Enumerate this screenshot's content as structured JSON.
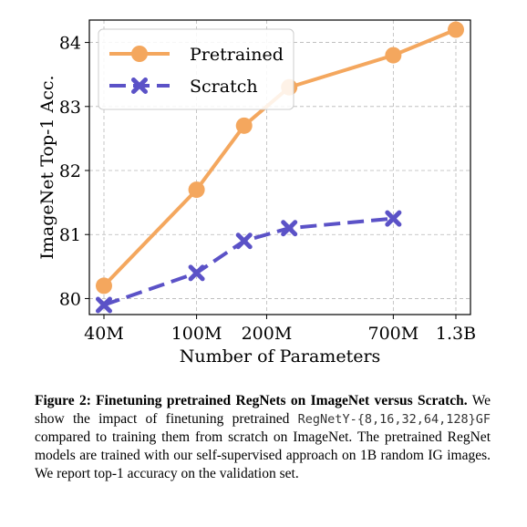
{
  "chart_data": {
    "type": "line",
    "xlabel": "Number of Parameters",
    "ylabel": "ImageNet Top-1 Acc.",
    "x_scale": "log",
    "x_ticks": [
      {
        "value": 40,
        "label": "40M"
      },
      {
        "value": 100,
        "label": "100M"
      },
      {
        "value": 200,
        "label": "200M"
      },
      {
        "value": 700,
        "label": "700M"
      },
      {
        "value": 1300,
        "label": "1.3B"
      }
    ],
    "xlim": [
      40,
      1300
    ],
    "y_ticks": [
      80,
      81,
      82,
      83,
      84
    ],
    "ylim": [
      79.75,
      84.35
    ],
    "grid": true,
    "legend_position": "top-left",
    "series": [
      {
        "name": "Pretrained",
        "color": "#f4a75e",
        "marker": "circle",
        "line_style": "solid",
        "x": [
          40,
          100,
          160,
          250,
          700,
          1300
        ],
        "y": [
          80.2,
          81.7,
          82.7,
          83.3,
          83.8,
          84.2
        ]
      },
      {
        "name": "Scratch",
        "color": "#5b52c7",
        "marker": "x",
        "line_style": "dashed",
        "x": [
          40,
          100,
          160,
          250,
          700
        ],
        "y": [
          79.9,
          80.4,
          80.9,
          81.1,
          81.25
        ]
      }
    ]
  },
  "caption": {
    "title": "Figure 2: Finetuning pretrained RegNets on ImageNet versus Scratch.",
    "text_1": " We show the impact of finetuning pretrained ",
    "code": "RegNetY-{8,16,32,64,128}GF",
    "text_2": " compared to training them from scratch on ImageNet. The pretrained RegNet models are trained with our self-supervised approach on 1B random IG images. We report top-1 accuracy on the validation set."
  }
}
